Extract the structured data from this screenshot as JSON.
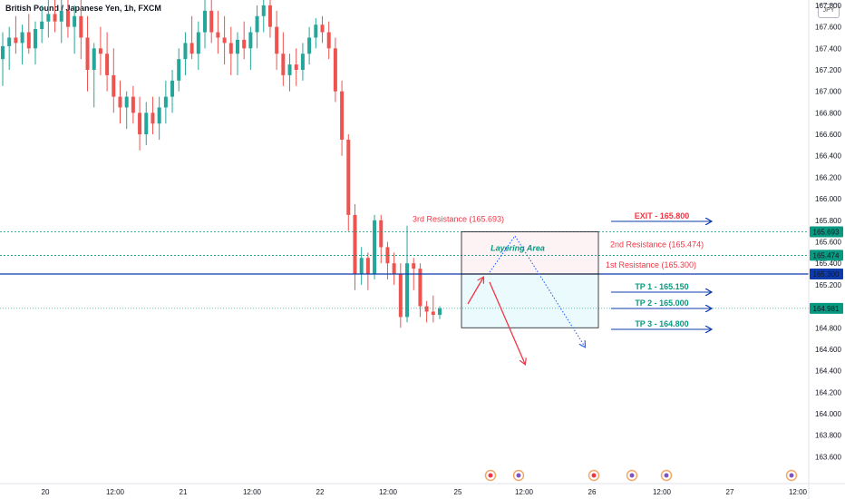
{
  "header": {
    "title": "British Pound / Japanese Yen, 1h, FXCM",
    "currency": "JPY"
  },
  "colors": {
    "up": "#26a69a",
    "down": "#ef5350",
    "blue": "#0d3bad",
    "red": "#f23645",
    "teal": "#089981",
    "dotted_blue": "#2962ff"
  },
  "chart_data": {
    "type": "candlestick",
    "title": "British Pound / Japanese Yen, 1h, FXCM",
    "ylim": [
      163.35,
      167.85
    ],
    "y_ticks": [
      "163.600",
      "163.800",
      "164.000",
      "164.200",
      "164.400",
      "164.600",
      "164.800",
      "165.000",
      "165.200",
      "165.400",
      "165.600",
      "165.800",
      "166.000",
      "166.200",
      "166.400",
      "166.600",
      "166.800",
      "167.000",
      "167.200",
      "167.400",
      "167.600",
      "167.800"
    ],
    "x_ticks": [
      "20",
      "12:00",
      "21",
      "12:00",
      "22",
      "12:00",
      "25",
      "12:00",
      "26",
      "12:00",
      "27",
      "12:00"
    ],
    "price_tags": [
      {
        "label": "165.693",
        "value": 165.693,
        "style": "teal"
      },
      {
        "label": "165.474",
        "value": 165.474,
        "style": "teal"
      },
      {
        "label": "165.300",
        "value": 165.3,
        "style": "blue"
      },
      {
        "label": "164.981",
        "value": 164.981,
        "style": "teal"
      }
    ],
    "levels": [
      {
        "label": "EXIT - 165.800",
        "value": 165.8,
        "color": "red"
      },
      {
        "label": "3rd Resistance (165.693)",
        "value": 165.693,
        "color": "red"
      },
      {
        "label": "2nd Resistance (165.474)",
        "value": 165.474,
        "color": "red"
      },
      {
        "label": "1st Resistance (165.300)",
        "value": 165.3,
        "color": "red"
      },
      {
        "label": "TP 1 - 165.150",
        "value": 165.15,
        "color": "teal"
      },
      {
        "label": "TP 2 - 165.000",
        "value": 165.0,
        "color": "teal"
      },
      {
        "label": "TP 3 - 164.800",
        "value": 164.8,
        "color": "teal"
      }
    ],
    "zone_label": "Layering Area",
    "candles": [
      {
        "o": 167.3,
        "h": 167.55,
        "l": 167.05,
        "c": 167.42
      },
      {
        "o": 167.42,
        "h": 167.6,
        "l": 167.2,
        "c": 167.5
      },
      {
        "o": 167.5,
        "h": 167.7,
        "l": 167.35,
        "c": 167.45
      },
      {
        "o": 167.45,
        "h": 167.62,
        "l": 167.25,
        "c": 167.55
      },
      {
        "o": 167.55,
        "h": 167.72,
        "l": 167.35,
        "c": 167.4
      },
      {
        "o": 167.4,
        "h": 167.65,
        "l": 167.25,
        "c": 167.58
      },
      {
        "o": 167.58,
        "h": 167.8,
        "l": 167.45,
        "c": 167.65
      },
      {
        "o": 167.65,
        "h": 167.85,
        "l": 167.5,
        "c": 167.72
      },
      {
        "o": 167.72,
        "h": 167.85,
        "l": 167.55,
        "c": 167.65
      },
      {
        "o": 167.65,
        "h": 167.85,
        "l": 167.45,
        "c": 167.75
      },
      {
        "o": 167.75,
        "h": 167.85,
        "l": 167.5,
        "c": 167.6
      },
      {
        "o": 167.6,
        "h": 167.8,
        "l": 167.35,
        "c": 167.7
      },
      {
        "o": 167.7,
        "h": 167.85,
        "l": 167.3,
        "c": 167.5
      },
      {
        "o": 167.5,
        "h": 167.7,
        "l": 167.0,
        "c": 167.2
      },
      {
        "o": 167.2,
        "h": 167.45,
        "l": 166.85,
        "c": 167.4
      },
      {
        "o": 167.4,
        "h": 167.6,
        "l": 167.15,
        "c": 167.35
      },
      {
        "o": 167.35,
        "h": 167.55,
        "l": 167.0,
        "c": 167.15
      },
      {
        "o": 167.15,
        "h": 167.4,
        "l": 166.8,
        "c": 166.95
      },
      {
        "o": 166.95,
        "h": 167.1,
        "l": 166.7,
        "c": 166.85
      },
      {
        "o": 166.85,
        "h": 167.0,
        "l": 166.65,
        "c": 166.95
      },
      {
        "o": 166.95,
        "h": 167.05,
        "l": 166.7,
        "c": 166.8
      },
      {
        "o": 166.8,
        "h": 166.95,
        "l": 166.45,
        "c": 166.6
      },
      {
        "o": 166.6,
        "h": 166.9,
        "l": 166.5,
        "c": 166.8
      },
      {
        "o": 166.8,
        "h": 166.95,
        "l": 166.6,
        "c": 166.7
      },
      {
        "o": 166.7,
        "h": 166.95,
        "l": 166.55,
        "c": 166.85
      },
      {
        "o": 166.85,
        "h": 167.1,
        "l": 166.7,
        "c": 166.95
      },
      {
        "o": 166.95,
        "h": 167.2,
        "l": 166.8,
        "c": 167.1
      },
      {
        "o": 167.1,
        "h": 167.4,
        "l": 167.0,
        "c": 167.3
      },
      {
        "o": 167.3,
        "h": 167.55,
        "l": 167.15,
        "c": 167.45
      },
      {
        "o": 167.45,
        "h": 167.7,
        "l": 167.3,
        "c": 167.35
      },
      {
        "o": 167.35,
        "h": 167.65,
        "l": 167.2,
        "c": 167.55
      },
      {
        "o": 167.55,
        "h": 167.85,
        "l": 167.4,
        "c": 167.75
      },
      {
        "o": 167.75,
        "h": 167.85,
        "l": 167.45,
        "c": 167.55
      },
      {
        "o": 167.55,
        "h": 167.75,
        "l": 167.35,
        "c": 167.5
      },
      {
        "o": 167.5,
        "h": 167.7,
        "l": 167.25,
        "c": 167.45
      },
      {
        "o": 167.45,
        "h": 167.6,
        "l": 167.15,
        "c": 167.35
      },
      {
        "o": 167.35,
        "h": 167.55,
        "l": 167.15,
        "c": 167.48
      },
      {
        "o": 167.48,
        "h": 167.65,
        "l": 167.3,
        "c": 167.4
      },
      {
        "o": 167.4,
        "h": 167.6,
        "l": 167.2,
        "c": 167.55
      },
      {
        "o": 167.55,
        "h": 167.8,
        "l": 167.4,
        "c": 167.7
      },
      {
        "o": 167.7,
        "h": 167.85,
        "l": 167.55,
        "c": 167.8
      },
      {
        "o": 167.8,
        "h": 167.85,
        "l": 167.5,
        "c": 167.6
      },
      {
        "o": 167.6,
        "h": 167.75,
        "l": 167.2,
        "c": 167.35
      },
      {
        "o": 167.35,
        "h": 167.55,
        "l": 167.05,
        "c": 167.15
      },
      {
        "o": 167.15,
        "h": 167.35,
        "l": 167.0,
        "c": 167.25
      },
      {
        "o": 167.25,
        "h": 167.4,
        "l": 167.05,
        "c": 167.2
      },
      {
        "o": 167.2,
        "h": 167.45,
        "l": 167.1,
        "c": 167.35
      },
      {
        "o": 167.35,
        "h": 167.6,
        "l": 167.25,
        "c": 167.5
      },
      {
        "o": 167.5,
        "h": 167.68,
        "l": 167.4,
        "c": 167.62
      },
      {
        "o": 167.62,
        "h": 167.7,
        "l": 167.45,
        "c": 167.55
      },
      {
        "o": 167.55,
        "h": 167.65,
        "l": 167.3,
        "c": 167.4
      },
      {
        "o": 167.4,
        "h": 167.5,
        "l": 166.9,
        "c": 167.0
      },
      {
        "o": 167.0,
        "h": 167.1,
        "l": 166.4,
        "c": 166.55
      },
      {
        "o": 166.55,
        "h": 166.6,
        "l": 165.7,
        "c": 165.85
      },
      {
        "o": 165.85,
        "h": 165.95,
        "l": 165.15,
        "c": 165.3
      },
      {
        "o": 165.3,
        "h": 165.55,
        "l": 165.2,
        "c": 165.45
      },
      {
        "o": 165.45,
        "h": 165.5,
        "l": 165.15,
        "c": 165.3
      },
      {
        "o": 165.3,
        "h": 165.85,
        "l": 165.25,
        "c": 165.8
      },
      {
        "o": 165.8,
        "h": 165.85,
        "l": 165.4,
        "c": 165.55
      },
      {
        "o": 165.55,
        "h": 165.6,
        "l": 165.25,
        "c": 165.4
      },
      {
        "o": 165.4,
        "h": 165.5,
        "l": 165.2,
        "c": 165.3
      },
      {
        "o": 165.3,
        "h": 165.4,
        "l": 164.8,
        "c": 164.9
      },
      {
        "o": 164.9,
        "h": 165.75,
        "l": 164.85,
        "c": 165.4
      },
      {
        "o": 165.4,
        "h": 165.45,
        "l": 165.15,
        "c": 165.35
      },
      {
        "o": 165.35,
        "h": 165.4,
        "l": 164.9,
        "c": 165.0
      },
      {
        "o": 165.0,
        "h": 165.05,
        "l": 164.85,
        "c": 164.95
      },
      {
        "o": 164.95,
        "h": 165.1,
        "l": 164.85,
        "c": 164.92
      },
      {
        "o": 164.92,
        "h": 165.0,
        "l": 164.88,
        "c": 164.98
      }
    ]
  }
}
